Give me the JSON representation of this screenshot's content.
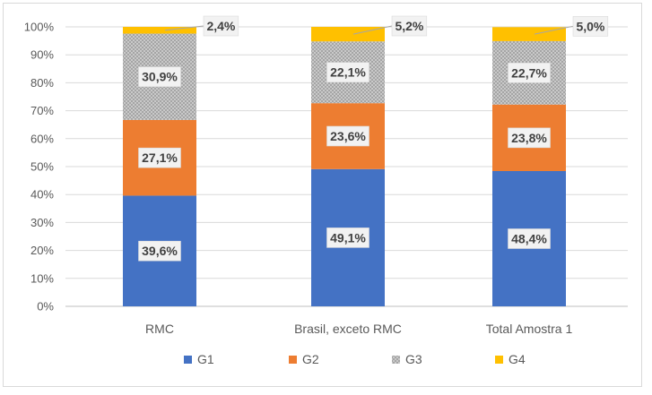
{
  "chart_data": {
    "type": "bar",
    "stacked": true,
    "categories": [
      "RMC",
      "Brasil, exceto RMC",
      "Total Amostra 1"
    ],
    "series": [
      {
        "name": "G1",
        "color": "#4472C4",
        "values": [
          39.6,
          49.1,
          48.4
        ],
        "labels": [
          "39,6%",
          "49,1%",
          "48,4%"
        ]
      },
      {
        "name": "G2",
        "color": "#ED7D31",
        "values": [
          27.1,
          23.6,
          23.8
        ],
        "labels": [
          "27,1%",
          "23,6%",
          "23,8%"
        ]
      },
      {
        "name": "G3",
        "color": "#A5A5A5",
        "pattern": "checkered",
        "values": [
          30.9,
          22.1,
          22.7
        ],
        "labels": [
          "30,9%",
          "22,1%",
          "22,7%"
        ]
      },
      {
        "name": "G4",
        "color": "#FFC000",
        "values": [
          2.4,
          5.2,
          5.0
        ],
        "labels": [
          "2,4%",
          "5,2%",
          "5,0%"
        ]
      }
    ],
    "yticks": [
      "0%",
      "10%",
      "20%",
      "30%",
      "40%",
      "50%",
      "60%",
      "70%",
      "80%",
      "90%",
      "100%"
    ],
    "ylim": [
      0,
      100
    ],
    "grid": true,
    "legend_position": "bottom"
  }
}
